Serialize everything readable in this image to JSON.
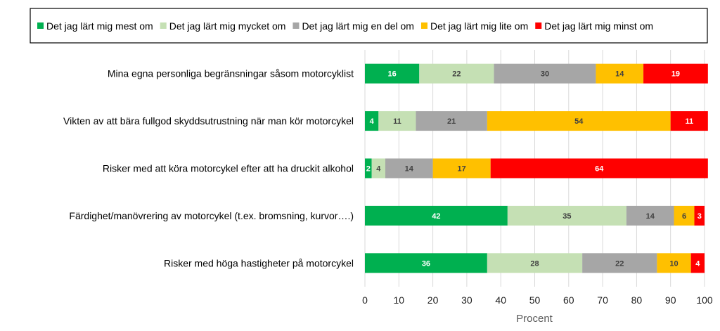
{
  "chart_data": {
    "type": "bar",
    "orientation": "horizontal",
    "stacked": true,
    "categories": [
      "Mina egna personliga begränsningar såsom motorcyklist",
      "Vikten av att bära fullgod skyddsutrustning när man kör motorcykel",
      "Risker med att köra motorcykel efter att ha druckit alkohol",
      "Färdighet/manövrering av motorcykel (t.ex. bromsning, kurvor….)",
      "Risker med höga hastigheter på motorcykel"
    ],
    "series": [
      {
        "name": "Det jag lärt mig mest om",
        "color": "#00B050",
        "label_color": "#ffffff",
        "values": [
          16,
          4,
          2,
          42,
          36
        ]
      },
      {
        "name": "Det jag lärt mig mycket om",
        "color": "#C5E0B4",
        "label_color": "#404040",
        "values": [
          22,
          11,
          4,
          35,
          28
        ]
      },
      {
        "name": "Det jag lärt mig en del om",
        "color": "#A6A6A6",
        "label_color": "#404040",
        "values": [
          30,
          21,
          14,
          14,
          22
        ]
      },
      {
        "name": "Det jag lärt mig lite om",
        "color": "#FFC000",
        "label_color": "#404040",
        "values": [
          14,
          54,
          17,
          6,
          10
        ]
      },
      {
        "name": "Det jag lärt mig minst om",
        "color": "#FF0000",
        "label_color": "#ffffff",
        "values": [
          19,
          11,
          64,
          3,
          4
        ]
      }
    ],
    "xlabel": "Procent",
    "ylabel": "",
    "xlim": [
      0,
      100
    ],
    "xticks": [
      "0",
      "10",
      "20",
      "30",
      "40",
      "50",
      "60",
      "70",
      "80",
      "90",
      "100"
    ],
    "grid": true,
    "legend_position": "top"
  }
}
